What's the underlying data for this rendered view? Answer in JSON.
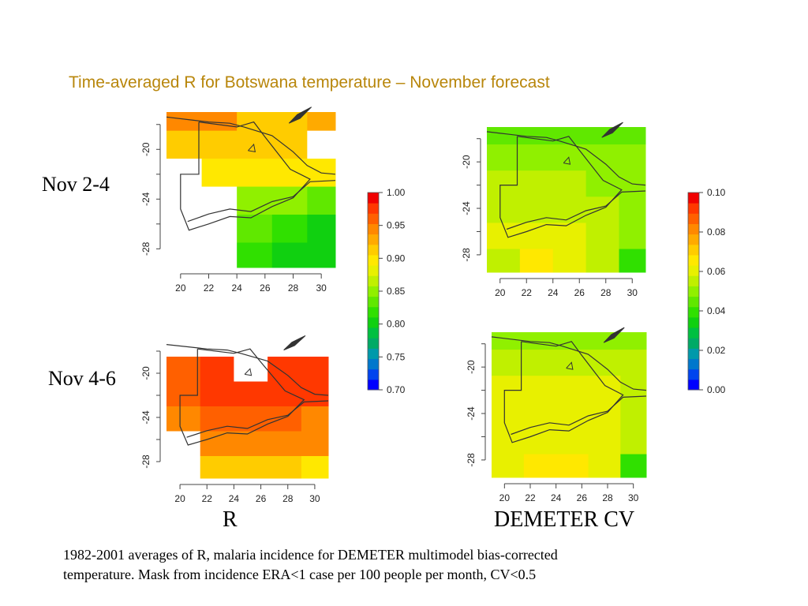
{
  "slide": {
    "title": "Time-averaged R for Botswana temperature – November forecast",
    "title_color": "#b8860b",
    "row_labels": [
      "Nov 2-4",
      "Nov 4-6"
    ],
    "column_labels": [
      "R",
      "DEMETER CV"
    ],
    "caption_lines": [
      "1982-2001 averages of R, malaria incidence for DEMETER multimodel bias-corrected",
      "temperature. Mask from incidence ERA<1 case per 100 people per month, CV<0.5"
    ]
  },
  "chart_data": [
    {
      "type": "heatmap",
      "id": "r-nov-2-4",
      "x_ticks": [
        "20",
        "22",
        "24",
        "26",
        "28",
        "30"
      ],
      "y_ticks": [
        "-20",
        "-24",
        "-28"
      ],
      "xlim": [
        19,
        31
      ],
      "ylim": [
        -29.5,
        -17
      ],
      "x_edges": [
        19.0,
        21.5,
        24.0,
        26.5,
        29.0,
        31.0
      ],
      "y_edges": [
        -17,
        -18.5,
        -20.75,
        -23,
        -25.25,
        -27.5,
        -29.5
      ],
      "colorbar": 0,
      "grid": [
        [
          0.95,
          0.95,
          0.91,
          0.91,
          0.93
        ],
        [
          0.91,
          0.92,
          0.91,
          0.91,
          null
        ],
        [
          null,
          0.89,
          0.89,
          0.89,
          0.89
        ],
        [
          null,
          null,
          0.85,
          0.85,
          0.83
        ],
        [
          null,
          null,
          0.84,
          0.82,
          0.8
        ],
        [
          null,
          null,
          0.82,
          0.8,
          0.8
        ]
      ]
    },
    {
      "type": "heatmap",
      "id": "cv-nov-2-4",
      "x_ticks": [
        "20",
        "22",
        "24",
        "26",
        "28",
        "30"
      ],
      "y_ticks": [
        "-20",
        "-24",
        "-28"
      ],
      "xlim": [
        19,
        31
      ],
      "ylim": [
        -29.5,
        -17
      ],
      "x_edges": [
        19.0,
        21.5,
        24.0,
        26.5,
        29.0,
        31.0
      ],
      "y_edges": [
        -17,
        -18.5,
        -20.75,
        -23,
        -25.25,
        -27.5,
        -29.5
      ],
      "colorbar": 1,
      "grid": [
        [
          0.044,
          0.044,
          0.046,
          0.046,
          0.044
        ],
        [
          0.05,
          0.05,
          0.05,
          0.05,
          0.048
        ],
        [
          0.054,
          0.054,
          0.054,
          0.052,
          0.052
        ],
        [
          0.056,
          0.056,
          0.056,
          0.054,
          0.05
        ],
        [
          0.058,
          0.06,
          0.058,
          0.056,
          0.05
        ],
        [
          0.056,
          0.064,
          0.062,
          0.056,
          0.04
        ]
      ]
    },
    {
      "type": "heatmap",
      "id": "r-nov-4-6",
      "x_ticks": [
        "20",
        "22",
        "24",
        "26",
        "28",
        "30"
      ],
      "y_ticks": [
        "-20",
        "-24",
        "-28"
      ],
      "xlim": [
        19,
        31
      ],
      "ylim": [
        -29.5,
        -16
      ],
      "x_edges": [
        19.0,
        21.5,
        24.0,
        26.5,
        29.0,
        31.0
      ],
      "y_edges": [
        -16,
        -18.5,
        -20.75,
        -23,
        -25.25,
        -27.5,
        -29.5
      ],
      "colorbar": 0,
      "grid": [
        [
          null,
          null,
          null,
          null,
          null
        ],
        [
          0.96,
          0.97,
          null,
          0.97,
          0.97
        ],
        [
          0.96,
          0.97,
          0.97,
          0.97,
          0.97
        ],
        [
          0.95,
          0.96,
          0.96,
          0.96,
          0.95
        ],
        [
          null,
          0.95,
          0.95,
          0.95,
          0.94
        ],
        [
          null,
          0.92,
          0.92,
          0.91,
          0.9
        ]
      ]
    },
    {
      "type": "heatmap",
      "id": "cv-nov-4-6",
      "x_ticks": [
        "20",
        "22",
        "24",
        "26",
        "28",
        "30"
      ],
      "y_ticks": [
        "-20",
        "-24",
        "-28"
      ],
      "xlim": [
        19,
        31
      ],
      "ylim": [
        -29.5,
        -17
      ],
      "x_edges": [
        19.0,
        21.5,
        24.0,
        26.5,
        29.0,
        31.0
      ],
      "y_edges": [
        -17,
        -18.5,
        -20.75,
        -23,
        -25.25,
        -27.5,
        -29.5
      ],
      "colorbar": 1,
      "grid": [
        [
          0.052,
          0.052,
          0.052,
          0.05,
          0.05
        ],
        [
          0.054,
          0.056,
          0.056,
          0.056,
          0.054
        ],
        [
          0.058,
          0.058,
          0.058,
          0.058,
          0.056
        ],
        [
          0.058,
          0.06,
          0.06,
          0.058,
          0.054
        ],
        [
          0.06,
          0.062,
          0.062,
          0.06,
          0.054
        ],
        [
          0.06,
          0.066,
          0.064,
          0.06,
          0.04
        ]
      ]
    }
  ],
  "colorbars": [
    {
      "id": "r-colorbar",
      "range": [
        0.7,
        1.0
      ],
      "tick_labels": [
        "1.00",
        "0.95",
        "0.90",
        "0.85",
        "0.80",
        "0.75",
        "0.70"
      ],
      "colors": [
        "#0000ff",
        "#0044ee",
        "#0077cc",
        "#0099aa",
        "#00aa66",
        "#00c040",
        "#10d010",
        "#30e000",
        "#60e800",
        "#90f000",
        "#c0f000",
        "#e8f000",
        "#ffe800",
        "#ffcc00",
        "#ffaa00",
        "#ff8800",
        "#ff6000",
        "#ff3800",
        "#f00000"
      ]
    },
    {
      "id": "cv-colorbar",
      "range": [
        0.0,
        0.1
      ],
      "tick_labels": [
        "0.10",
        "0.08",
        "0.06",
        "0.04",
        "0.02",
        "0.00"
      ],
      "colors": [
        "#0000ff",
        "#0044ee",
        "#0077cc",
        "#0099aa",
        "#00aa66",
        "#00c040",
        "#10d010",
        "#30e000",
        "#60e800",
        "#90f000",
        "#c0f000",
        "#e8f000",
        "#ffe800",
        "#ffcc00",
        "#ffaa00",
        "#ff8800",
        "#ff6000",
        "#ff3800",
        "#f00000"
      ]
    }
  ]
}
